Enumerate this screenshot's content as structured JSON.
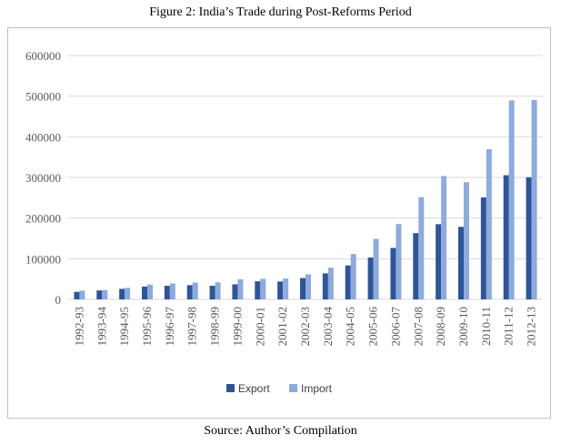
{
  "figure_title": "Figure 2: India’s Trade during Post-Reforms Period",
  "source_note": "Source: Author’s Compilation",
  "chart_data": {
    "type": "bar",
    "title": "",
    "xlabel": "",
    "ylabel": "",
    "ylim": [
      0,
      600000
    ],
    "yticks": [
      0,
      100000,
      200000,
      300000,
      400000,
      500000,
      600000
    ],
    "grid": true,
    "legend": "bottom",
    "categories": [
      "1992-93",
      "1993-94",
      "1994-95",
      "1995-96",
      "1996-97",
      "1997-98",
      "1998-99",
      "1999-00",
      "2000-01",
      "2001-02",
      "2002-03",
      "2003-04",
      "2004-05",
      "2005-06",
      "2006-07",
      "2007-08",
      "2008-09",
      "2009-10",
      "2010-11",
      "2011-12",
      "2012-13"
    ],
    "series": [
      {
        "name": "Export",
        "color": "#2f5597",
        "values": [
          18500,
          22000,
          26000,
          31500,
          33500,
          35000,
          33500,
          37000,
          44500,
          44000,
          52500,
          64000,
          83500,
          103000,
          126500,
          163000,
          185000,
          178500,
          251000,
          305500,
          300500
        ]
      },
      {
        "name": "Import",
        "color": "#8faadc",
        "values": [
          21500,
          23000,
          28500,
          36500,
          39000,
          41500,
          42000,
          49500,
          50500,
          51500,
          61500,
          78000,
          111500,
          149000,
          185500,
          251500,
          303500,
          288500,
          369500,
          489500,
          490500
        ]
      }
    ]
  }
}
